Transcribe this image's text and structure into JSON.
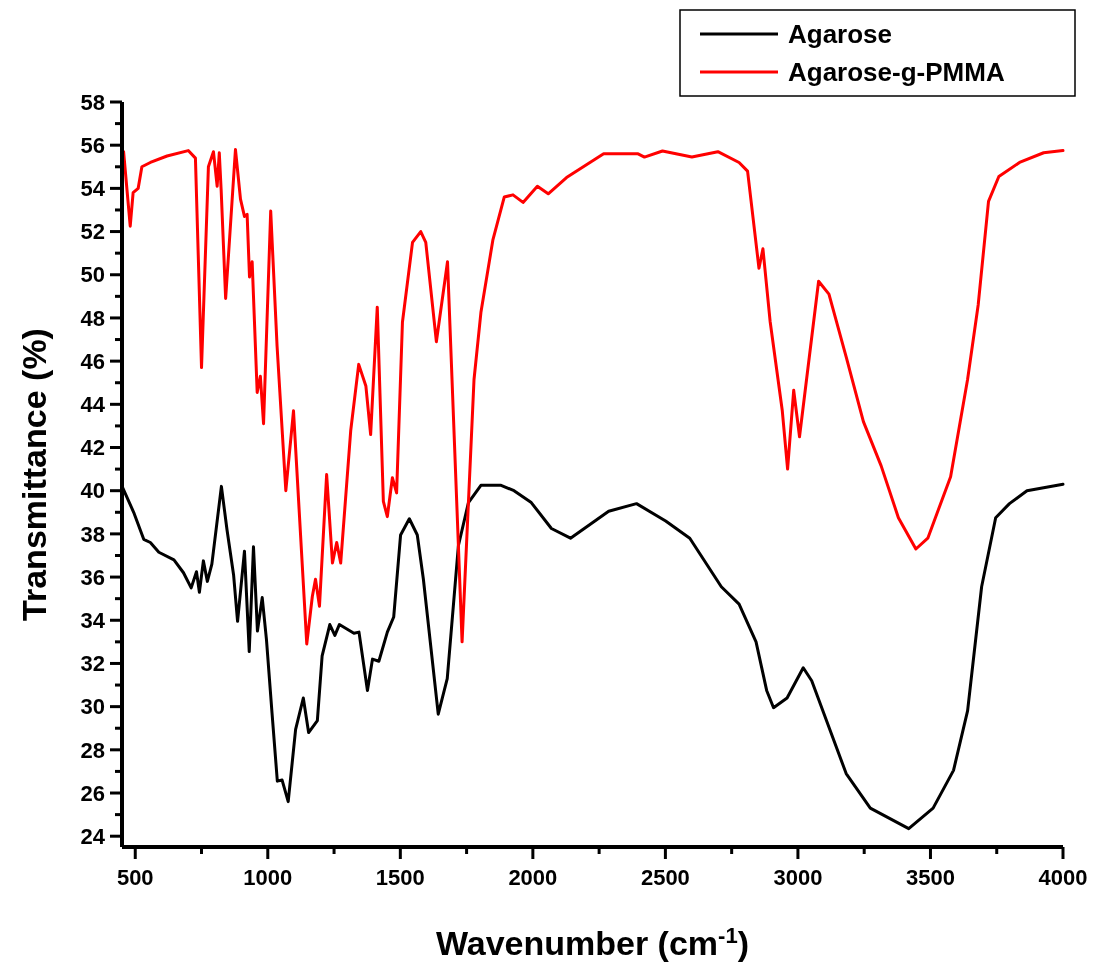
{
  "chart_data": {
    "type": "line",
    "xlabel": "Wavenumber (cm$^{-1}$)",
    "ylabel": "Transmittance (%)",
    "xlim": [
      450,
      4000
    ],
    "xticks": [
      500,
      1000,
      1500,
      2000,
      2500,
      3000,
      3500,
      4000
    ],
    "ylim": [
      23.5,
      58
    ],
    "yticks": [
      24,
      26,
      28,
      30,
      32,
      34,
      36,
      38,
      40,
      42,
      44,
      46,
      48,
      50,
      52,
      54,
      56,
      58
    ],
    "grid": false,
    "legend": "top right",
    "line_style": "solid",
    "marker": "none",
    "series": [
      {
        "name": "Agarose",
        "color": "#000000",
        "x": [
          452,
          494,
          532,
          557,
          589,
          646,
          682,
          711,
          731,
          742,
          757,
          772,
          789,
          825,
          846,
          871,
          886,
          912,
          930,
          946,
          961,
          979,
          995,
          1016,
          1036,
          1054,
          1077,
          1105,
          1134,
          1154,
          1187,
          1205,
          1234,
          1253,
          1270,
          1325,
          1344,
          1376,
          1395,
          1419,
          1451,
          1475,
          1501,
          1534,
          1564,
          1587,
          1643,
          1677,
          1719,
          1757,
          1804,
          1880,
          1929,
          1994,
          2070,
          2142,
          2286,
          2391,
          2501,
          2592,
          2711,
          2778,
          2842,
          2882,
          2908,
          2959,
          3020,
          3052,
          3182,
          3273,
          3418,
          3510,
          3587,
          3640,
          3693,
          3746,
          3798,
          3864,
          4000
        ],
        "values": [
          40.15,
          39.0,
          37.75,
          37.6,
          37.15,
          36.8,
          36.2,
          35.5,
          36.25,
          35.3,
          36.75,
          35.8,
          36.6,
          40.2,
          38.2,
          36.1,
          33.95,
          37.2,
          32.55,
          37.4,
          33.5,
          35.05,
          33.1,
          29.7,
          26.55,
          26.6,
          25.6,
          28.95,
          30.4,
          28.8,
          29.35,
          32.35,
          33.8,
          33.3,
          33.8,
          33.4,
          33.45,
          30.75,
          32.2,
          32.1,
          33.45,
          34.15,
          37.95,
          38.7,
          37.95,
          35.9,
          29.65,
          31.3,
          37.45,
          39.45,
          40.25,
          40.25,
          40.0,
          39.45,
          38.25,
          37.8,
          39.05,
          39.4,
          38.6,
          37.8,
          35.55,
          34.75,
          33.0,
          30.75,
          29.95,
          30.4,
          31.8,
          31.2,
          26.9,
          25.3,
          24.35,
          25.3,
          27.05,
          29.8,
          35.55,
          38.75,
          39.4,
          40.0,
          40.3
        ]
      },
      {
        "name": "Agarose-g-PMMA",
        "color": "#ff0000",
        "x": [
          456,
          481,
          492,
          511,
          525,
          557,
          620,
          700,
          727,
          750,
          776,
          795,
          809,
          817,
          824,
          841,
          878,
          897,
          912,
          922,
          931,
          941,
          960,
          972,
          984,
          1011,
          1035,
          1068,
          1097,
          1147,
          1168,
          1180,
          1195,
          1222,
          1244,
          1260,
          1275,
          1313,
          1343,
          1370,
          1388,
          1413,
          1436,
          1451,
          1470,
          1486,
          1508,
          1546,
          1577,
          1596,
          1636,
          1678,
          1733,
          1778,
          1804,
          1849,
          1892,
          1925,
          1963,
          2017,
          2058,
          2127,
          2267,
          2397,
          2421,
          2489,
          2600,
          2698,
          2778,
          2810,
          2853,
          2868,
          2895,
          2941,
          2961,
          2984,
          3006,
          3078,
          3117,
          3182,
          3247,
          3314,
          3379,
          3445,
          3490,
          3576,
          3640,
          3680,
          3719,
          3758,
          3836,
          3927,
          4000
        ],
        "values": [
          55.7,
          52.25,
          53.8,
          54.0,
          55.0,
          55.2,
          55.5,
          55.75,
          55.4,
          45.7,
          55.0,
          55.7,
          54.1,
          55.65,
          53.95,
          48.9,
          55.8,
          53.5,
          52.7,
          52.8,
          49.9,
          50.6,
          44.55,
          45.3,
          43.1,
          52.95,
          46.7,
          40.0,
          43.7,
          32.9,
          35.1,
          35.9,
          34.65,
          40.75,
          36.65,
          37.6,
          36.65,
          42.8,
          45.85,
          44.85,
          42.6,
          48.5,
          39.5,
          38.8,
          40.6,
          39.9,
          47.8,
          51.5,
          52.0,
          51.5,
          46.9,
          50.6,
          33.0,
          45.15,
          48.25,
          51.6,
          53.6,
          53.7,
          53.35,
          54.1,
          53.75,
          54.5,
          55.6,
          55.6,
          55.45,
          55.73,
          55.45,
          55.7,
          55.2,
          54.8,
          50.3,
          51.2,
          47.85,
          43.7,
          41.0,
          44.65,
          42.5,
          49.7,
          49.1,
          46.2,
          43.2,
          41.15,
          38.75,
          37.3,
          37.8,
          40.65,
          45.15,
          48.6,
          53.4,
          54.55,
          55.2,
          55.65,
          55.75
        ]
      }
    ]
  }
}
